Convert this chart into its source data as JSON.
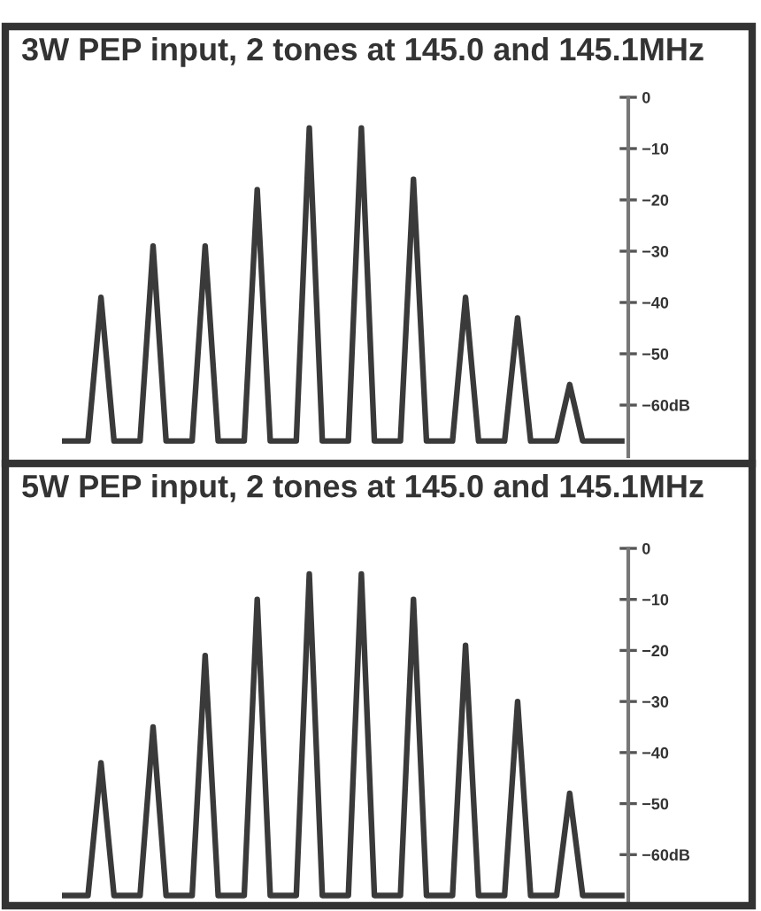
{
  "chart_data": [
    {
      "type": "line",
      "title": "3W PEP input, 2 tones at 145.0 and 145.1MHz",
      "categories": [
        null,
        null,
        null,
        null,
        null,
        null,
        null,
        null,
        null,
        null,
        null,
        null,
        null,
        null,
        null,
        null,
        null,
        null,
        null,
        null,
        null,
        null,
        null,
        null,
        null,
        null,
        null,
        null,
        null,
        null,
        null,
        null,
        null,
        null,
        null,
        null,
        null,
        null,
        null,
        null,
        null,
        null,
        null,
        null
      ],
      "values": [
        -67,
        -67,
        -67,
        -39,
        -67,
        -67,
        -67,
        -29,
        -67,
        -67,
        -67,
        -29,
        -67,
        -67,
        -67,
        -18,
        -67,
        -67,
        -67,
        -6,
        -67,
        -67,
        -67,
        -6,
        -67,
        -67,
        -67,
        -16,
        -67,
        -67,
        -67,
        -39,
        -67,
        -67,
        -67,
        -43,
        -67,
        -67,
        -67,
        -56,
        -67,
        -67,
        -67,
        -67
      ],
      "color": "#3a3a3a",
      "ylim": [
        -70,
        0
      ],
      "yticks": [
        0,
        -10,
        -20,
        -30,
        -40,
        -50,
        {
          "value": -60,
          "label": "−60dB"
        }
      ],
      "tick_labels": "y"
    },
    {
      "type": "line",
      "title": "5W PEP input, 2 tones at 145.0 and 145.1MHz",
      "categories": [
        null,
        null,
        null,
        null,
        null,
        null,
        null,
        null,
        null,
        null,
        null,
        null,
        null,
        null,
        null,
        null,
        null,
        null,
        null,
        null,
        null,
        null,
        null,
        null,
        null,
        null,
        null,
        null,
        null,
        null,
        null,
        null,
        null,
        null,
        null,
        null,
        null,
        null,
        null,
        null,
        null,
        null,
        null,
        null
      ],
      "values": [
        -68,
        -68,
        -68,
        -42,
        -68,
        -68,
        -68,
        -35,
        -68,
        -68,
        -68,
        -21,
        -68,
        -68,
        -68,
        -10,
        -68,
        -68,
        -68,
        -5,
        -68,
        -68,
        -68,
        -5,
        -68,
        -68,
        -68,
        -10,
        -68,
        -68,
        -68,
        -19,
        -68,
        -68,
        -68,
        -30,
        -68,
        -68,
        -68,
        -48,
        -68,
        -68,
        -68,
        -68
      ],
      "color": "#3a3a3a",
      "ylim": [
        -70,
        0
      ],
      "yticks": [
        0,
        -10,
        -20,
        -30,
        -40,
        -50,
        {
          "value": -60,
          "label": "−60dB"
        }
      ],
      "tick_labels": "y"
    }
  ]
}
